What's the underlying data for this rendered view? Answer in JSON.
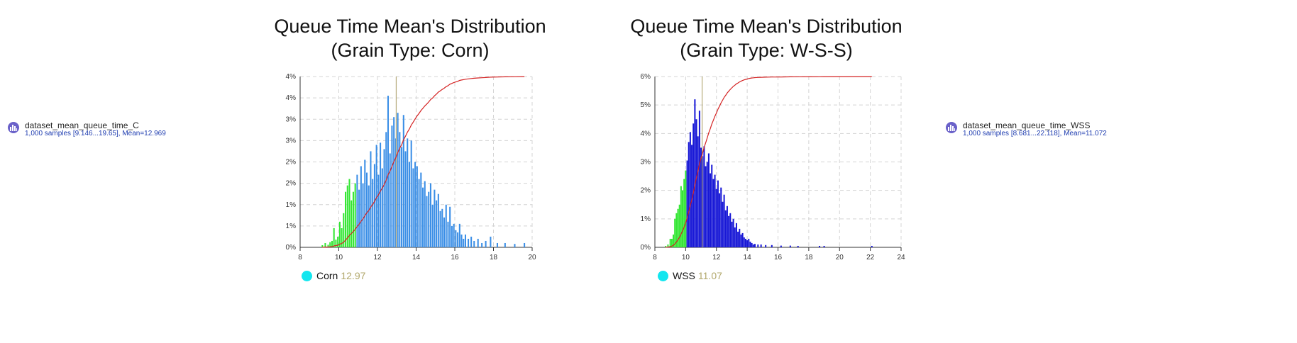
{
  "datasets": [
    {
      "name": "dataset_mean_queue_time_C",
      "description": "1,000 samples [9.146...19.65], Mean=12.969",
      "icon": "histogram-icon"
    },
    {
      "name": "dataset_mean_queue_time_WSS",
      "description": "1,000 samples [8.681...22.118], Mean=11.072",
      "icon": "histogram-icon"
    }
  ],
  "chart_data": [
    {
      "type": "bar",
      "title": "Queue Time Mean's Distribution",
      "subtitle": "(Grain Type: Corn)",
      "xlim": [
        8,
        20
      ],
      "ylim": [
        0,
        4
      ],
      "xticks": [
        8,
        10,
        12,
        14,
        16,
        18,
        20
      ],
      "yticks": [
        "0%",
        "1%",
        "1%",
        "2%",
        "2%",
        "3%",
        "3%",
        "4%",
        "4%"
      ],
      "grid": true,
      "mean": 12.97,
      "bar_color": "#3a8ee6",
      "low_tail_color": "#33e633",
      "cdf_color": "#d42222",
      "mean_line_color": "#b5aa7a",
      "legend": {
        "name": "Corn",
        "value": "12.97",
        "color": "#13e6ef"
      },
      "bins": [
        {
          "x": 9.15,
          "y": 0.05
        },
        {
          "x": 9.3,
          "y": 0.1
        },
        {
          "x": 9.45,
          "y": 0.06
        },
        {
          "x": 9.55,
          "y": 0.12
        },
        {
          "x": 9.65,
          "y": 0.15
        },
        {
          "x": 9.75,
          "y": 0.45
        },
        {
          "x": 9.85,
          "y": 0.18
        },
        {
          "x": 9.95,
          "y": 0.25
        },
        {
          "x": 10.05,
          "y": 0.6
        },
        {
          "x": 10.15,
          "y": 0.45
        },
        {
          "x": 10.25,
          "y": 0.8
        },
        {
          "x": 10.35,
          "y": 1.3
        },
        {
          "x": 10.45,
          "y": 1.45
        },
        {
          "x": 10.55,
          "y": 1.6
        },
        {
          "x": 10.65,
          "y": 1.1
        },
        {
          "x": 10.75,
          "y": 1.3
        },
        {
          "x": 10.85,
          "y": 1.5
        },
        {
          "x": 10.95,
          "y": 1.7
        },
        {
          "x": 11.05,
          "y": 1.35
        },
        {
          "x": 11.15,
          "y": 1.9
        },
        {
          "x": 11.25,
          "y": 1.5
        },
        {
          "x": 11.35,
          "y": 2.05
        },
        {
          "x": 11.45,
          "y": 1.75
        },
        {
          "x": 11.55,
          "y": 1.45
        },
        {
          "x": 11.65,
          "y": 2.25
        },
        {
          "x": 11.75,
          "y": 1.6
        },
        {
          "x": 11.85,
          "y": 1.95
        },
        {
          "x": 11.95,
          "y": 2.4
        },
        {
          "x": 12.05,
          "y": 1.7
        },
        {
          "x": 12.15,
          "y": 2.45
        },
        {
          "x": 12.25,
          "y": 1.85
        },
        {
          "x": 12.35,
          "y": 2.3
        },
        {
          "x": 12.45,
          "y": 2.7
        },
        {
          "x": 12.55,
          "y": 3.55
        },
        {
          "x": 12.65,
          "y": 2.2
        },
        {
          "x": 12.75,
          "y": 2.85
        },
        {
          "x": 12.85,
          "y": 3.05
        },
        {
          "x": 12.95,
          "y": 2.55
        },
        {
          "x": 13.05,
          "y": 3.15
        },
        {
          "x": 13.15,
          "y": 2.7
        },
        {
          "x": 13.25,
          "y": 2.35
        },
        {
          "x": 13.35,
          "y": 3.1
        },
        {
          "x": 13.45,
          "y": 2.25
        },
        {
          "x": 13.55,
          "y": 2.55
        },
        {
          "x": 13.65,
          "y": 2.0
        },
        {
          "x": 13.75,
          "y": 2.5
        },
        {
          "x": 13.85,
          "y": 1.85
        },
        {
          "x": 13.95,
          "y": 2.0
        },
        {
          "x": 14.05,
          "y": 1.9
        },
        {
          "x": 14.15,
          "y": 1.6
        },
        {
          "x": 14.25,
          "y": 1.75
        },
        {
          "x": 14.35,
          "y": 1.4
        },
        {
          "x": 14.45,
          "y": 1.55
        },
        {
          "x": 14.55,
          "y": 1.2
        },
        {
          "x": 14.65,
          "y": 1.3
        },
        {
          "x": 14.75,
          "y": 1.5
        },
        {
          "x": 14.85,
          "y": 1.0
        },
        {
          "x": 14.95,
          "y": 1.35
        },
        {
          "x": 15.05,
          "y": 1.1
        },
        {
          "x": 15.15,
          "y": 1.25
        },
        {
          "x": 15.25,
          "y": 0.85
        },
        {
          "x": 15.35,
          "y": 0.9
        },
        {
          "x": 15.45,
          "y": 0.7
        },
        {
          "x": 15.55,
          "y": 1.0
        },
        {
          "x": 15.65,
          "y": 0.6
        },
        {
          "x": 15.75,
          "y": 0.95
        },
        {
          "x": 15.85,
          "y": 0.5
        },
        {
          "x": 15.95,
          "y": 0.55
        },
        {
          "x": 16.05,
          "y": 0.4
        },
        {
          "x": 16.15,
          "y": 0.35
        },
        {
          "x": 16.25,
          "y": 0.55
        },
        {
          "x": 16.35,
          "y": 0.3
        },
        {
          "x": 16.45,
          "y": 0.2
        },
        {
          "x": 16.55,
          "y": 0.3
        },
        {
          "x": 16.7,
          "y": 0.2
        },
        {
          "x": 16.85,
          "y": 0.25
        },
        {
          "x": 17.0,
          "y": 0.15
        },
        {
          "x": 17.2,
          "y": 0.2
        },
        {
          "x": 17.4,
          "y": 0.1
        },
        {
          "x": 17.6,
          "y": 0.15
        },
        {
          "x": 17.85,
          "y": 0.25
        },
        {
          "x": 18.2,
          "y": 0.1
        },
        {
          "x": 18.6,
          "y": 0.1
        },
        {
          "x": 19.1,
          "y": 0.08
        },
        {
          "x": 19.6,
          "y": 0.1
        }
      ]
    },
    {
      "type": "bar",
      "title": "Queue Time Mean's Distribution",
      "subtitle": "(Grain Type: W-S-S)",
      "xlim": [
        8,
        24
      ],
      "ylim": [
        0,
        6
      ],
      "xticks": [
        8,
        10,
        12,
        14,
        16,
        18,
        20,
        22,
        24
      ],
      "yticks": [
        "0%",
        "1%",
        "2%",
        "3%",
        "4%",
        "5%",
        "6%"
      ],
      "grid": true,
      "mean": 11.07,
      "bar_color": "#1717d6",
      "low_tail_color": "#33e633",
      "cdf_color": "#d42222",
      "mean_line_color": "#b5aa7a",
      "legend": {
        "name": "WSS",
        "value": "11.07",
        "color": "#13e6ef"
      },
      "bins": [
        {
          "x": 8.7,
          "y": 0.05
        },
        {
          "x": 8.85,
          "y": 0.1
        },
        {
          "x": 9.0,
          "y": 0.3
        },
        {
          "x": 9.1,
          "y": 0.3
        },
        {
          "x": 9.2,
          "y": 0.45
        },
        {
          "x": 9.3,
          "y": 1.0
        },
        {
          "x": 9.4,
          "y": 1.2
        },
        {
          "x": 9.5,
          "y": 1.35
        },
        {
          "x": 9.6,
          "y": 1.5
        },
        {
          "x": 9.7,
          "y": 2.15
        },
        {
          "x": 9.8,
          "y": 2.0
        },
        {
          "x": 9.9,
          "y": 2.4
        },
        {
          "x": 10.0,
          "y": 2.7
        },
        {
          "x": 10.1,
          "y": 3.05
        },
        {
          "x": 10.2,
          "y": 3.7
        },
        {
          "x": 10.3,
          "y": 4.05
        },
        {
          "x": 10.4,
          "y": 3.6
        },
        {
          "x": 10.5,
          "y": 4.35
        },
        {
          "x": 10.6,
          "y": 5.2
        },
        {
          "x": 10.7,
          "y": 4.5
        },
        {
          "x": 10.8,
          "y": 3.9
        },
        {
          "x": 10.9,
          "y": 4.8
        },
        {
          "x": 11.0,
          "y": 3.5
        },
        {
          "x": 11.1,
          "y": 3.2
        },
        {
          "x": 11.2,
          "y": 3.55
        },
        {
          "x": 11.3,
          "y": 2.85
        },
        {
          "x": 11.4,
          "y": 3.0
        },
        {
          "x": 11.5,
          "y": 3.3
        },
        {
          "x": 11.6,
          "y": 2.6
        },
        {
          "x": 11.7,
          "y": 2.9
        },
        {
          "x": 11.8,
          "y": 2.4
        },
        {
          "x": 11.9,
          "y": 2.55
        },
        {
          "x": 12.0,
          "y": 2.05
        },
        {
          "x": 12.1,
          "y": 2.35
        },
        {
          "x": 12.2,
          "y": 1.9
        },
        {
          "x": 12.3,
          "y": 2.1
        },
        {
          "x": 12.4,
          "y": 1.6
        },
        {
          "x": 12.5,
          "y": 1.85
        },
        {
          "x": 12.6,
          "y": 1.3
        },
        {
          "x": 12.7,
          "y": 1.45
        },
        {
          "x": 12.8,
          "y": 1.1
        },
        {
          "x": 12.9,
          "y": 1.2
        },
        {
          "x": 13.0,
          "y": 0.9
        },
        {
          "x": 13.1,
          "y": 1.0
        },
        {
          "x": 13.2,
          "y": 0.7
        },
        {
          "x": 13.3,
          "y": 0.85
        },
        {
          "x": 13.4,
          "y": 0.55
        },
        {
          "x": 13.5,
          "y": 0.65
        },
        {
          "x": 13.6,
          "y": 0.45
        },
        {
          "x": 13.7,
          "y": 0.5
        },
        {
          "x": 13.8,
          "y": 0.35
        },
        {
          "x": 13.9,
          "y": 0.3
        },
        {
          "x": 14.0,
          "y": 0.25
        },
        {
          "x": 14.1,
          "y": 0.3
        },
        {
          "x": 14.2,
          "y": 0.2
        },
        {
          "x": 14.3,
          "y": 0.15
        },
        {
          "x": 14.4,
          "y": 0.1
        },
        {
          "x": 14.5,
          "y": 0.12
        },
        {
          "x": 14.7,
          "y": 0.1
        },
        {
          "x": 14.9,
          "y": 0.1
        },
        {
          "x": 15.2,
          "y": 0.08
        },
        {
          "x": 15.6,
          "y": 0.08
        },
        {
          "x": 16.2,
          "y": 0.06
        },
        {
          "x": 16.8,
          "y": 0.06
        },
        {
          "x": 17.3,
          "y": 0.05
        },
        {
          "x": 18.7,
          "y": 0.05
        },
        {
          "x": 19.0,
          "y": 0.05
        },
        {
          "x": 22.1,
          "y": 0.05
        }
      ]
    }
  ]
}
